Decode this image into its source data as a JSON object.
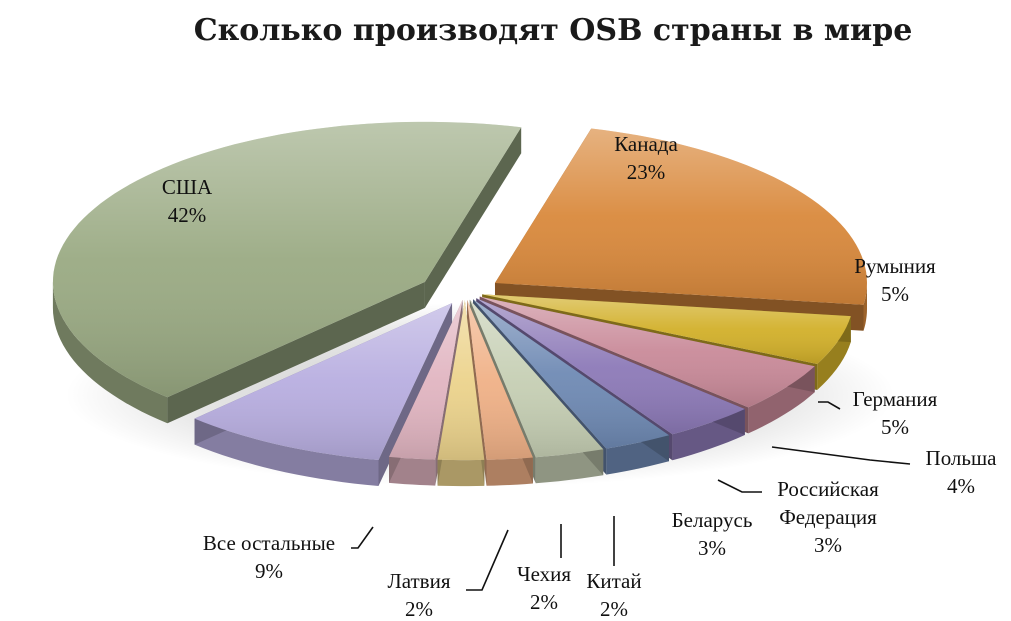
{
  "chart_data": {
    "type": "pie",
    "title": "Сколько производят OSB страны в мире",
    "slices": [
      {
        "name": "Канада",
        "pct": "23%",
        "value": 23,
        "color": "#d9893c"
      },
      {
        "name": "Румыния",
        "pct": "5%",
        "value": 5,
        "color": "#d2b02a"
      },
      {
        "name": "Германия",
        "pct": "5%",
        "value": 5,
        "color": "#c98a99"
      },
      {
        "name": "Польша",
        "pct": "4%",
        "value": 4,
        "color": "#8d7ab8"
      },
      {
        "name": "Российская Федерация",
        "name_lines": [
          "Российская",
          "Федерация"
        ],
        "pct": "3%",
        "value": 3,
        "color": "#6f8ab4"
      },
      {
        "name": "Беларусь",
        "pct": "3%",
        "value": 3,
        "color": "#c6cfb4"
      },
      {
        "name": "Китай",
        "pct": "2%",
        "value": 2,
        "color": "#f0b187"
      },
      {
        "name": "Чехия",
        "pct": "2%",
        "value": 2,
        "color": "#ecd38c"
      },
      {
        "name": "Латвия",
        "pct": "2%",
        "value": 2,
        "color": "#e1b5c1"
      },
      {
        "name": "Все остальные",
        "pct": "9%",
        "value": 9,
        "color": "#b8aee0"
      },
      {
        "name": "США",
        "pct": "42%",
        "value": 42,
        "color": "#9aaa83"
      }
    ],
    "style": "3d-exploded",
    "legend": "none",
    "data_labels": "outside-with-leaders"
  }
}
